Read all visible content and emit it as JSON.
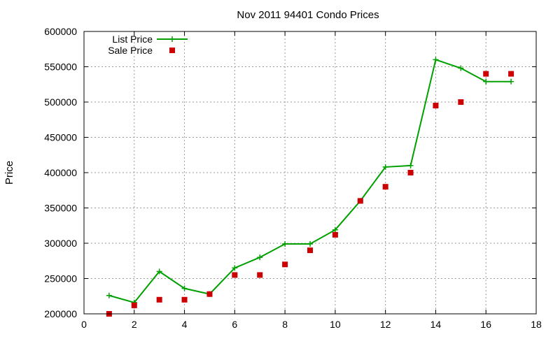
{
  "chart_data": {
    "type": "line",
    "title": "Nov 2011 94401 Condo Prices",
    "xlabel": "",
    "ylabel": "Price",
    "xlim": [
      0,
      18
    ],
    "ylim": [
      200000,
      600000
    ],
    "xticks": [
      0,
      2,
      4,
      6,
      8,
      10,
      12,
      14,
      16,
      18
    ],
    "yticks": [
      200000,
      250000,
      300000,
      350000,
      400000,
      450000,
      500000,
      550000,
      600000
    ],
    "grid": true,
    "legend_position": "top-left",
    "series": [
      {
        "name": "List Price",
        "kind": "line",
        "color": "#00a000",
        "marker": "plus",
        "x": [
          1,
          2,
          3,
          4,
          5,
          6,
          7,
          8,
          9,
          10,
          11,
          12,
          13,
          14,
          15,
          16,
          17
        ],
        "y": [
          226000,
          216000,
          260000,
          236000,
          228000,
          265000,
          280000,
          299000,
          299000,
          319000,
          360000,
          408000,
          410000,
          560000,
          548000,
          529000,
          529000
        ]
      },
      {
        "name": "Sale Price",
        "kind": "scatter",
        "color": "#cc0000",
        "marker": "square",
        "x": [
          1,
          2,
          3,
          4,
          5,
          6,
          7,
          8,
          9,
          10,
          11,
          12,
          13,
          14,
          15,
          16,
          17
        ],
        "y": [
          200000,
          212000,
          220000,
          220000,
          228000,
          255000,
          255000,
          270000,
          290000,
          312000,
          360000,
          380000,
          400000,
          495000,
          500000,
          540000,
          540000
        ]
      }
    ]
  }
}
